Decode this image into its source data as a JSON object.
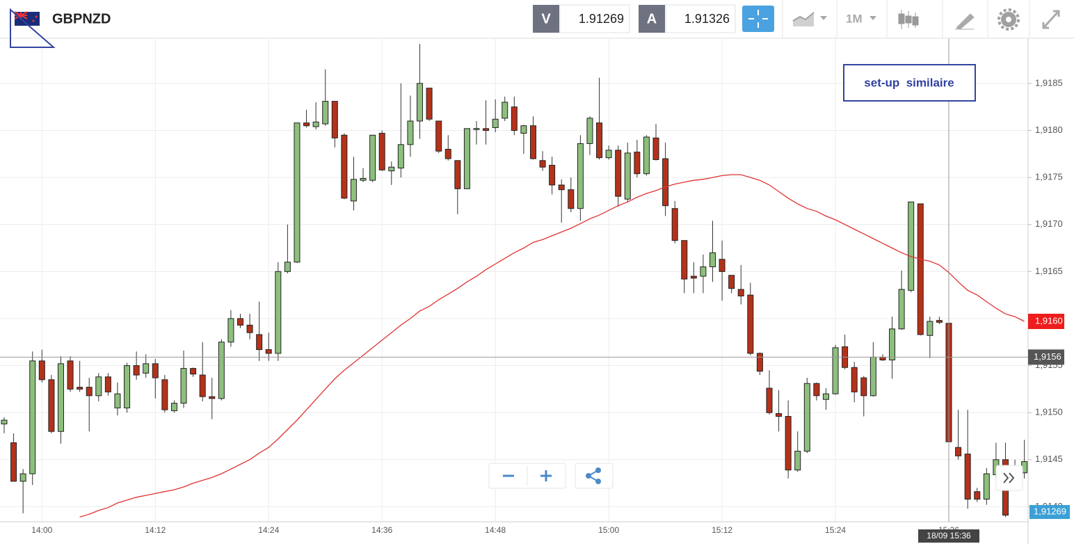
{
  "toolbar": {
    "symbol": "GBPNZD",
    "bid_tag": "V",
    "bid": 1.91269,
    "ask_tag": "A",
    "ask": 1.91326,
    "timeframe": "1M"
  },
  "chart_data": {
    "type": "candlestick",
    "annotation": "set-up  similaire",
    "x": [
      "13:56",
      "13:57",
      "13:58",
      "13:59",
      "14:00",
      "14:01",
      "14:02",
      "14:03",
      "14:04",
      "14:05",
      "14:06",
      "14:07",
      "14:08",
      "14:09",
      "14:10",
      "14:11",
      "14:12",
      "14:13",
      "14:14",
      "14:15",
      "14:16",
      "14:17",
      "14:18",
      "14:19",
      "14:20",
      "14:21",
      "14:22",
      "14:23",
      "14:24",
      "14:25",
      "14:26",
      "14:27",
      "14:28",
      "14:29",
      "14:30",
      "14:31",
      "14:32",
      "14:33",
      "14:34",
      "14:35",
      "14:36",
      "14:37",
      "14:38",
      "14:39",
      "14:40",
      "14:41",
      "14:42",
      "14:43",
      "14:44",
      "14:45",
      "14:46",
      "14:47",
      "14:48",
      "14:49",
      "14:50",
      "14:51",
      "14:52",
      "14:53",
      "14:54",
      "14:55",
      "14:56",
      "14:57",
      "14:58",
      "14:59",
      "15:00",
      "15:01",
      "15:02",
      "15:03",
      "15:04",
      "15:05",
      "15:06",
      "15:07",
      "15:08",
      "15:09",
      "15:10",
      "15:11",
      "15:12",
      "15:13",
      "15:14",
      "15:15",
      "15:16",
      "15:17",
      "15:18",
      "15:19",
      "15:20",
      "15:21",
      "15:22",
      "15:23",
      "15:24",
      "15:25",
      "15:26",
      "15:27",
      "15:28",
      "15:29",
      "15:30",
      "15:31",
      "15:32",
      "15:33",
      "15:34",
      "15:35",
      "15:36",
      "15:37",
      "15:38",
      "15:39",
      "15:40",
      "15:41",
      "15:42",
      "15:43",
      "15:44"
    ],
    "candles": {
      "up_color": "#8dbf7d",
      "down_color": "#b5321a",
      "open": [
        1.91488,
        1.91468,
        1.91427,
        1.91435,
        1.91555,
        1.91535,
        1.9148,
        1.91555,
        1.91527,
        1.91527,
        1.91518,
        1.91538,
        1.91505,
        1.91505,
        1.9155,
        1.91542,
        1.91552,
        1.91535,
        1.91502,
        1.9151,
        1.91547,
        1.9154,
        1.91517,
        1.91515,
        1.91575,
        1.916,
        1.91593,
        1.91583,
        1.91567,
        1.91563,
        1.9165,
        1.9166,
        1.91808,
        1.91804,
        1.91807,
        1.91831,
        1.91795,
        1.91725,
        1.91747,
        1.91747,
        1.91797,
        1.91757,
        1.9176,
        1.91785,
        1.9181,
        1.91845,
        1.9181,
        1.9178,
        1.91768,
        1.91738,
        1.91801,
        1.91802,
        1.91803,
        1.91813,
        1.91825,
        1.91797,
        1.91805,
        1.91768,
        1.91763,
        1.91742,
        1.91737,
        1.91717,
        1.91786,
        1.91808,
        1.91771,
        1.91779,
        1.91727,
        1.91777,
        1.91754,
        1.91792,
        1.9177,
        1.91717,
        1.91683,
        1.91645,
        1.91645,
        1.91655,
        1.91663,
        1.91646,
        1.91631,
        1.91625,
        1.91563,
        1.91526,
        1.91499,
        1.91496,
        1.91439,
        1.91459,
        1.91531,
        1.91514,
        1.9152,
        1.9157,
        1.91548,
        1.91537,
        1.91518,
        1.91559,
        1.91556,
        1.91589,
        1.9163,
        1.91722,
        1.91582,
        1.91598,
        1.91595,
        1.91463,
        1.91456,
        1.91416,
        1.91408,
        1.91434,
        1.9145,
        1.91421,
        1.91436
      ],
      "high": [
        1.91495,
        1.91478,
        1.9144,
        1.91565,
        1.91567,
        1.9154,
        1.9156,
        1.9156,
        1.91555,
        1.91537,
        1.91542,
        1.91542,
        1.91532,
        1.91553,
        1.91565,
        1.91562,
        1.91557,
        1.9154,
        1.91513,
        1.91566,
        1.91548,
        1.91575,
        1.91537,
        1.91578,
        1.91609,
        1.91605,
        1.91605,
        1.91618,
        1.91585,
        1.9166,
        1.917,
        1.91808,
        1.91822,
        1.9183,
        1.91865,
        1.91831,
        1.91797,
        1.91772,
        1.9176,
        1.91795,
        1.918,
        1.91767,
        1.9185,
        1.91837,
        1.91892,
        1.91845,
        1.9181,
        1.91795,
        1.91768,
        1.91802,
        1.9181,
        1.91832,
        1.91833,
        1.91836,
        1.91836,
        1.91806,
        1.91815,
        1.91778,
        1.91772,
        1.91748,
        1.9175,
        1.91795,
        1.91815,
        1.91856,
        1.91784,
        1.91784,
        1.91787,
        1.9179,
        1.91795,
        1.91807,
        1.91787,
        1.91725,
        1.91683,
        1.9166,
        1.91668,
        1.91704,
        1.91683,
        1.91646,
        1.91657,
        1.91638,
        1.91564,
        1.91545,
        1.91524,
        1.91513,
        1.9148,
        1.91537,
        1.91532,
        1.91526,
        1.91572,
        1.91583,
        1.91554,
        1.91539,
        1.91575,
        1.91562,
        1.91602,
        1.91651,
        1.91724,
        1.91722,
        1.91602,
        1.91602,
        1.91597,
        1.91503,
        1.91503,
        1.9142,
        1.91441,
        1.91468,
        1.91468,
        1.9145,
        1.91471
      ],
      "low": [
        1.91478,
        1.91435,
        1.91393,
        1.91423,
        1.91532,
        1.91478,
        1.91467,
        1.91522,
        1.91522,
        1.9148,
        1.91512,
        1.91518,
        1.91497,
        1.915,
        1.91535,
        1.91537,
        1.91515,
        1.915,
        1.915,
        1.91505,
        1.91538,
        1.91512,
        1.91493,
        1.91513,
        1.9157,
        1.9159,
        1.91578,
        1.91555,
        1.91555,
        1.91555,
        1.91648,
        1.91659,
        1.91803,
        1.91801,
        1.91805,
        1.91782,
        1.91727,
        1.91715,
        1.91745,
        1.91745,
        1.91757,
        1.91742,
        1.9175,
        1.91772,
        1.91791,
        1.9181,
        1.91776,
        1.91768,
        1.91711,
        1.91738,
        1.91785,
        1.91785,
        1.91798,
        1.9181,
        1.91795,
        1.91775,
        1.91769,
        1.91757,
        1.91732,
        1.91702,
        1.91713,
        1.91704,
        1.91774,
        1.91769,
        1.91769,
        1.91719,
        1.91724,
        1.9175,
        1.91752,
        1.91768,
        1.91709,
        1.9168,
        1.91627,
        1.91627,
        1.91627,
        1.91639,
        1.91619,
        1.91627,
        1.91615,
        1.91561,
        1.9154,
        1.91498,
        1.9148,
        1.9143,
        1.91437,
        1.91457,
        1.91513,
        1.91503,
        1.91519,
        1.91546,
        1.91511,
        1.91496,
        1.91517,
        1.91555,
        1.91536,
        1.91588,
        1.91628,
        1.91582,
        1.91558,
        1.91594,
        1.91462,
        1.9145,
        1.91398,
        1.91405,
        1.91402,
        1.91429,
        1.91389,
        1.91418,
        1.9143
      ],
      "close": [
        1.91492,
        1.91427,
        1.91435,
        1.91555,
        1.91535,
        1.9148,
        1.91552,
        1.91525,
        1.91525,
        1.91518,
        1.91538,
        1.91522,
        1.9152,
        1.9155,
        1.9154,
        1.91552,
        1.91537,
        1.91503,
        1.9151,
        1.91547,
        1.91541,
        1.91517,
        1.91515,
        1.91575,
        1.916,
        1.91593,
        1.91585,
        1.91567,
        1.91563,
        1.9165,
        1.9166,
        1.91808,
        1.91805,
        1.91809,
        1.91831,
        1.91792,
        1.91728,
        1.91748,
        1.91749,
        1.91795,
        1.91758,
        1.91761,
        1.91785,
        1.9181,
        1.9185,
        1.91812,
        1.91778,
        1.9177,
        1.91738,
        1.91802,
        1.91802,
        1.918,
        1.91812,
        1.9183,
        1.918,
        1.91805,
        1.9177,
        1.91761,
        1.91742,
        1.91737,
        1.91717,
        1.91786,
        1.91813,
        1.91771,
        1.91779,
        1.9173,
        1.91776,
        1.91754,
        1.91793,
        1.91769,
        1.9172,
        1.91683,
        1.91642,
        1.91643,
        1.91655,
        1.9167,
        1.9165,
        1.91632,
        1.91624,
        1.91563,
        1.91544,
        1.915,
        1.91496,
        1.91439,
        1.91459,
        1.91531,
        1.91518,
        1.9152,
        1.91569,
        1.91548,
        1.91522,
        1.91518,
        1.91559,
        1.91556,
        1.91589,
        1.91631,
        1.91724,
        1.91583,
        1.91597,
        1.91596,
        1.91469,
        1.91454,
        1.91408,
        1.91408,
        1.91435,
        1.9145,
        1.91391,
        1.9144,
        1.91448
      ]
    },
    "series": [
      {
        "color": "#e03232",
        "last_label": "1,9160",
        "values": [
          null,
          null,
          null,
          null,
          null,
          null,
          null,
          null,
          1.91389,
          1.91392,
          1.91396,
          1.91399,
          1.91404,
          1.91407,
          1.9141,
          1.91412,
          1.91414,
          1.91416,
          1.91418,
          1.91421,
          1.91425,
          1.91428,
          1.91431,
          1.91435,
          1.9144,
          1.91445,
          1.9145,
          1.91457,
          1.91463,
          1.91472,
          1.91482,
          1.91492,
          1.91503,
          1.91514,
          1.91525,
          1.91536,
          1.91545,
          1.91553,
          1.91561,
          1.91569,
          1.91577,
          1.91585,
          1.91593,
          1.916,
          1.91608,
          1.91613,
          1.9162,
          1.91626,
          1.91632,
          1.91639,
          1.91645,
          1.91652,
          1.91658,
          1.91664,
          1.9167,
          1.91675,
          1.91681,
          1.91684,
          1.91688,
          1.91692,
          1.91696,
          1.91701,
          1.91706,
          1.9171,
          1.91715,
          1.9172,
          1.91724,
          1.91729,
          1.91733,
          1.91736,
          1.9174,
          1.91743,
          1.91745,
          1.91747,
          1.91748,
          1.9175,
          1.91752,
          1.91753,
          1.91753,
          1.9175,
          1.91747,
          1.91742,
          1.91735,
          1.91728,
          1.91722,
          1.91717,
          1.91714,
          1.91709,
          1.91705,
          1.917,
          1.91695,
          1.9169,
          1.91685,
          1.9168,
          1.91675,
          1.9167,
          1.91666,
          1.91663,
          1.91661,
          1.91657,
          1.91649,
          1.91639,
          1.9163,
          1.91625,
          1.91618,
          1.91611,
          1.91605,
          1.91602,
          1.91597
        ]
      }
    ],
    "crosshair": {
      "x": "15:36",
      "time_label": "18/09 15:36",
      "price": 1.91559,
      "price_label": "1,9156"
    },
    "bid_label": "1,91269",
    "ylim": [
      1.91384,
      1.91898
    ],
    "yticks": [
      {
        "value": 1.914,
        "label": "1,9140"
      },
      {
        "value": 1.9145,
        "label": "1,9145"
      },
      {
        "value": 1.915,
        "label": "1,9150"
      },
      {
        "value": 1.9155,
        "label": "1,9155"
      },
      {
        "value": 1.916,
        "label": "1,9160"
      },
      {
        "value": 1.9165,
        "label": "1,9165"
      },
      {
        "value": 1.917,
        "label": "1,9170"
      },
      {
        "value": 1.9175,
        "label": "1,9175"
      },
      {
        "value": 1.918,
        "label": "1,9180"
      },
      {
        "value": 1.9185,
        "label": "1,9185"
      }
    ],
    "xticks": [
      "14:00",
      "14:12",
      "14:24",
      "14:36",
      "14:48",
      "15:00",
      "15:12",
      "15:24",
      "15:36"
    ],
    "grid": true
  }
}
